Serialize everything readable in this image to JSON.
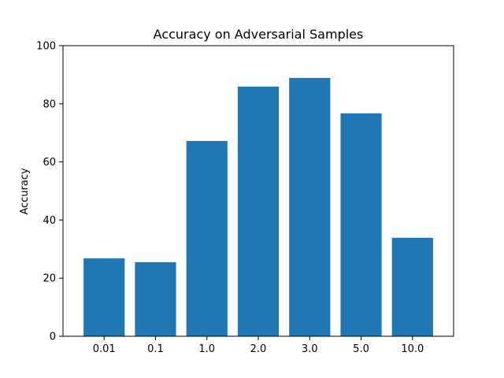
{
  "chart_data": {
    "type": "bar",
    "title": "Accuracy on Adversarial Samples",
    "xlabel": "",
    "ylabel": "Accuracy",
    "categories": [
      "0.01",
      "0.1",
      "1.0",
      "2.0",
      "3.0",
      "5.0",
      "10.0"
    ],
    "values": [
      26.8,
      25.5,
      67.2,
      85.9,
      88.9,
      76.7,
      33.9
    ],
    "ylim": [
      0,
      100
    ],
    "yticks": [
      "0",
      "20",
      "40",
      "60",
      "80",
      "100"
    ],
    "grid": false,
    "legend": "none",
    "bar_color": "#1f77b4"
  }
}
